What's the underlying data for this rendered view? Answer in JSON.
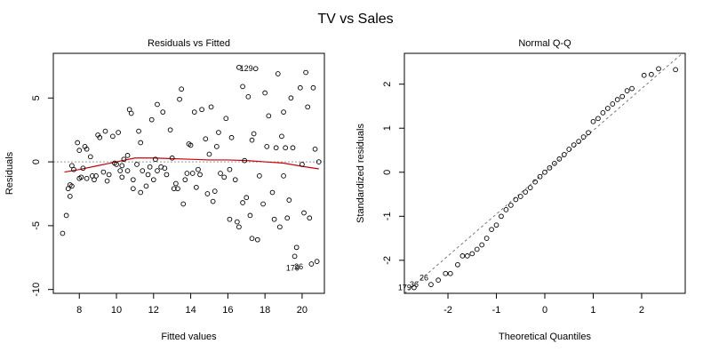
{
  "figure_title": "TV vs Sales",
  "chart_data": [
    {
      "type": "scatter",
      "title": "Residuals vs Fitted",
      "xlabel": "Fitted values",
      "ylabel": "Residuals",
      "xlim": [
        6.6,
        21.2
      ],
      "ylim": [
        -10.3,
        8.5
      ],
      "xticks": [
        8,
        10,
        12,
        14,
        16,
        18,
        20
      ],
      "yticks": [
        -10,
        -5,
        0,
        5
      ],
      "reference_line": 0,
      "points": [
        [
          7.1,
          -5.6
        ],
        [
          7.3,
          -4.2
        ],
        [
          7.4,
          -2.1
        ],
        [
          7.5,
          -1.8
        ],
        [
          7.5,
          -2.7
        ],
        [
          7.6,
          -0.3
        ],
        [
          7.7,
          -0.6
        ],
        [
          7.6,
          -1.9
        ],
        [
          7.9,
          1.5
        ],
        [
          8.0,
          0.9
        ],
        [
          8.0,
          -1.3
        ],
        [
          8.1,
          -1.2
        ],
        [
          8.2,
          -0.5
        ],
        [
          8.3,
          1.2
        ],
        [
          8.4,
          1.0
        ],
        [
          8.4,
          -1.3
        ],
        [
          8.6,
          0.4
        ],
        [
          8.7,
          -1.1
        ],
        [
          8.8,
          -1.4
        ],
        [
          8.9,
          -1.1
        ],
        [
          9.0,
          2.1
        ],
        [
          9.1,
          1.9
        ],
        [
          9.3,
          -0.8
        ],
        [
          9.4,
          2.4
        ],
        [
          9.5,
          -1.5
        ],
        [
          9.6,
          -1.0
        ],
        [
          9.8,
          2.0
        ],
        [
          9.9,
          -0.1
        ],
        [
          10.0,
          -0.2
        ],
        [
          10.1,
          2.3
        ],
        [
          10.2,
          -0.7
        ],
        [
          10.3,
          -0.3
        ],
        [
          10.3,
          -1.2
        ],
        [
          10.4,
          0.2
        ],
        [
          10.6,
          0.5
        ],
        [
          10.6,
          -0.7
        ],
        [
          10.7,
          4.1
        ],
        [
          10.8,
          3.8
        ],
        [
          10.9,
          -1.4
        ],
        [
          10.9,
          -2.1
        ],
        [
          11.1,
          -0.2
        ],
        [
          11.2,
          2.4
        ],
        [
          11.3,
          -2.4
        ],
        [
          11.3,
          1.5
        ],
        [
          11.4,
          -0.7
        ],
        [
          11.6,
          -1.9
        ],
        [
          11.7,
          -1.0
        ],
        [
          11.8,
          -0.4
        ],
        [
          11.9,
          3.3
        ],
        [
          12.0,
          -1.4
        ],
        [
          12.1,
          0.2
        ],
        [
          12.2,
          -0.7
        ],
        [
          12.2,
          4.5
        ],
        [
          12.4,
          -0.4
        ],
        [
          12.5,
          3.9
        ],
        [
          12.6,
          -0.5
        ],
        [
          12.7,
          -1.0
        ],
        [
          12.9,
          2.5
        ],
        [
          13.0,
          0.3
        ],
        [
          13.1,
          -2.1
        ],
        [
          13.2,
          -1.7
        ],
        [
          13.3,
          -2.1
        ],
        [
          13.4,
          4.9
        ],
        [
          13.5,
          5.7
        ],
        [
          13.6,
          -3.3
        ],
        [
          13.7,
          -1.4
        ],
        [
          13.8,
          -0.9
        ],
        [
          13.9,
          1.4
        ],
        [
          14.0,
          1.3
        ],
        [
          14.1,
          -0.9
        ],
        [
          14.2,
          3.9
        ],
        [
          14.3,
          -2.0
        ],
        [
          14.4,
          -0.6
        ],
        [
          14.5,
          -1.0
        ],
        [
          14.6,
          4.1
        ],
        [
          14.8,
          1.8
        ],
        [
          14.9,
          -2.5
        ],
        [
          15.0,
          0.6
        ],
        [
          15.1,
          4.3
        ],
        [
          15.2,
          -3.1
        ],
        [
          15.3,
          -2.3
        ],
        [
          15.4,
          1.2
        ],
        [
          15.5,
          2.3
        ],
        [
          15.6,
          -0.9
        ],
        [
          15.8,
          -1.2
        ],
        [
          15.9,
          3.4
        ],
        [
          16.1,
          -0.6
        ],
        [
          16.2,
          1.9
        ],
        [
          16.4,
          -1.4
        ],
        [
          16.5,
          -4.7
        ],
        [
          16.6,
          -5.1
        ],
        [
          16.6,
          7.4
        ],
        [
          16.8,
          5.9
        ],
        [
          16.8,
          -3.2
        ],
        [
          16.9,
          0.1
        ],
        [
          17.0,
          -2.8
        ],
        [
          17.1,
          5.1
        ],
        [
          17.2,
          -4.2
        ],
        [
          17.3,
          1.7
        ],
        [
          17.4,
          2.2
        ],
        [
          17.5,
          7.3
        ],
        [
          17.6,
          -6.1
        ],
        [
          17.7,
          -1.1
        ],
        [
          17.9,
          -3.3
        ],
        [
          18.0,
          5.4
        ],
        [
          18.1,
          1.2
        ],
        [
          18.2,
          3.6
        ],
        [
          18.4,
          -2.4
        ],
        [
          18.5,
          -4.5
        ],
        [
          18.6,
          1.1
        ],
        [
          18.7,
          6.9
        ],
        [
          18.8,
          -5.1
        ],
        [
          18.9,
          2.0
        ],
        [
          19.0,
          -1.1
        ],
        [
          19.1,
          1.1
        ],
        [
          19.2,
          -4.4
        ],
        [
          19.3,
          -3.0
        ],
        [
          19.4,
          5.0
        ],
        [
          19.5,
          1.1
        ],
        [
          19.6,
          -7.4
        ],
        [
          19.7,
          -6.7
        ],
        [
          19.9,
          5.8
        ],
        [
          20.0,
          -0.2
        ],
        [
          20.1,
          -4.0
        ],
        [
          20.2,
          7.0
        ],
        [
          20.3,
          4.3
        ],
        [
          20.4,
          -4.4
        ],
        [
          20.5,
          -8.0
        ],
        [
          20.6,
          5.8
        ],
        [
          20.7,
          1.0
        ],
        [
          20.8,
          -7.8
        ],
        [
          20.9,
          0.0
        ],
        [
          17.3,
          -6.0
        ],
        [
          16.1,
          -4.5
        ],
        [
          19.0,
          3.9
        ]
      ],
      "smoother": {
        "color": "#cc0000",
        "x": [
          7.2,
          8.0,
          9.0,
          10.0,
          11.0,
          12.0,
          13.0,
          14.0,
          15.0,
          16.0,
          17.0,
          18.0,
          19.0,
          20.0,
          20.9
        ],
        "y": [
          -0.8,
          -0.6,
          -0.3,
          0.0,
          0.3,
          0.3,
          0.25,
          0.2,
          0.15,
          0.15,
          0.1,
          0.0,
          -0.1,
          -0.35,
          -0.55
        ]
      },
      "point_labels": [
        {
          "text": "129",
          "x": 17.5,
          "y": 7.3
        },
        {
          "text": "179",
          "x": 20.0,
          "y": -8.3
        },
        {
          "text": "26",
          "x": 20.2,
          "y": -8.2
        }
      ]
    },
    {
      "type": "scatter",
      "title": "Normal Q-Q",
      "xlabel": "Theoretical Quantiles",
      "ylabel": "Standardized residuals",
      "xlim": [
        -2.9,
        2.9
      ],
      "ylim": [
        -2.75,
        2.7
      ],
      "xticks": [
        -2,
        -1,
        0,
        1,
        2
      ],
      "yticks": [
        -2,
        -1,
        0,
        1,
        2
      ],
      "reference_line": {
        "intercept": 0,
        "slope": 0.95,
        "style": "dashed"
      },
      "points": [
        [
          -2.7,
          -2.62
        ],
        [
          -2.35,
          -2.55
        ],
        [
          -2.2,
          -2.45
        ],
        [
          -2.05,
          -2.3
        ],
        [
          -1.95,
          -2.3
        ],
        [
          -1.8,
          -2.1
        ],
        [
          -1.7,
          -1.9
        ],
        [
          -1.6,
          -1.9
        ],
        [
          -1.5,
          -1.85
        ],
        [
          -1.4,
          -1.75
        ],
        [
          -1.3,
          -1.65
        ],
        [
          -1.2,
          -1.5
        ],
        [
          -1.1,
          -1.3
        ],
        [
          -1.0,
          -1.2
        ],
        [
          -0.9,
          -1.0
        ],
        [
          -0.8,
          -0.85
        ],
        [
          -0.7,
          -0.75
        ],
        [
          -0.6,
          -0.62
        ],
        [
          -0.5,
          -0.55
        ],
        [
          -0.4,
          -0.45
        ],
        [
          -0.3,
          -0.35
        ],
        [
          -0.2,
          -0.22
        ],
        [
          -0.1,
          -0.1
        ],
        [
          0.0,
          0.0
        ],
        [
          0.1,
          0.1
        ],
        [
          0.2,
          0.2
        ],
        [
          0.3,
          0.3
        ],
        [
          0.4,
          0.4
        ],
        [
          0.5,
          0.52
        ],
        [
          0.6,
          0.62
        ],
        [
          0.7,
          0.7
        ],
        [
          0.8,
          0.8
        ],
        [
          0.9,
          0.9
        ],
        [
          1.0,
          1.15
        ],
        [
          1.1,
          1.22
        ],
        [
          1.2,
          1.35
        ],
        [
          1.3,
          1.45
        ],
        [
          1.4,
          1.55
        ],
        [
          1.5,
          1.65
        ],
        [
          1.6,
          1.72
        ],
        [
          1.7,
          1.85
        ],
        [
          1.8,
          1.9
        ],
        [
          2.05,
          2.2
        ],
        [
          2.2,
          2.22
        ],
        [
          2.35,
          2.35
        ],
        [
          2.7,
          2.33
        ]
      ],
      "point_labels": [
        {
          "text": "179",
          "x": -2.7,
          "y": -2.62
        },
        {
          "text": "36",
          "x": -2.55,
          "y": -2.55
        },
        {
          "text": "26",
          "x": -2.35,
          "y": -2.4
        }
      ]
    }
  ]
}
